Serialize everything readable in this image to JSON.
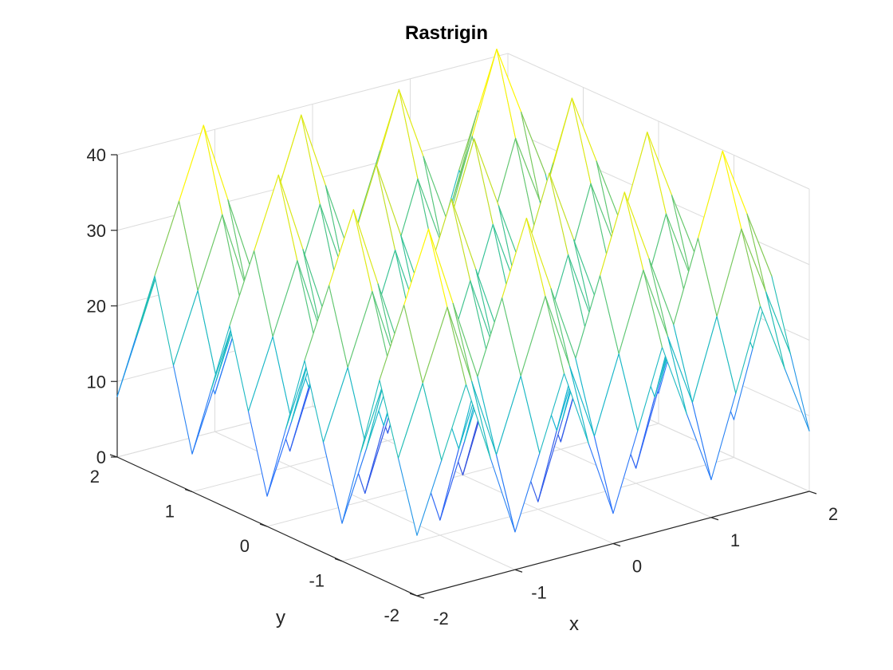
{
  "chart_data": {
    "type": "surface-mesh",
    "title": "Rastrigin",
    "xlabel": "x",
    "ylabel": "y",
    "zlabel": "",
    "function": "z = 20 + x^2 + y^2 - 10*(cos(2*pi*x) + cos(2*pi*y))",
    "x_grid": [
      -2.0,
      -1.75,
      -1.5,
      -1.25,
      -1.0,
      -0.75,
      -0.5,
      -0.25,
      0.0,
      0.25,
      0.5,
      0.75,
      1.0,
      1.25,
      1.5,
      1.75,
      2.0
    ],
    "y_grid": [
      -2.0,
      -1.75,
      -1.5,
      -1.25,
      -1.0,
      -0.75,
      -0.5,
      -0.25,
      0.0,
      0.25,
      0.5,
      0.75,
      1.0,
      1.25,
      1.5,
      1.75,
      2.0
    ],
    "xlim": [
      -2,
      2
    ],
    "ylim": [
      -2,
      2
    ],
    "zlim": [
      0,
      40
    ],
    "xticks": [
      "-2",
      "-1",
      "0",
      "1",
      "2"
    ],
    "yticks": [
      "-2",
      "-1",
      "0",
      "1",
      "2"
    ],
    "zticks": [
      "0",
      "10",
      "20",
      "30",
      "40"
    ],
    "colormap": [
      "#3e26a8",
      "#2f6efe",
      "#16b3d6",
      "#26c1a7",
      "#94cc46",
      "#fff600"
    ],
    "grid": true
  }
}
